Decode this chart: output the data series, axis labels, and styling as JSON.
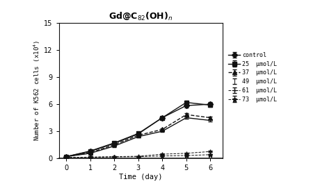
{
  "title": "Gd@C$_{82}$(OH)$_n$",
  "xlabel": "Time (day)",
  "ylabel": "Number of K562 cells (x10$^4$)",
  "xlim": [
    -0.3,
    6.5
  ],
  "ylim": [
    0,
    15
  ],
  "yticks": [
    0,
    3,
    6,
    9,
    12,
    15
  ],
  "xticks": [
    0,
    1,
    2,
    3,
    4,
    5,
    6
  ],
  "time": [
    0,
    1,
    2,
    3,
    4,
    5,
    6
  ],
  "series": [
    {
      "label": "control",
      "values": [
        0.18,
        0.75,
        1.65,
        2.7,
        4.5,
        5.85,
        6.0
      ],
      "errors": [
        0.05,
        0.08,
        0.1,
        0.12,
        0.12,
        0.2,
        0.22
      ],
      "linestyle": "-",
      "marker": "D",
      "markersize": 4,
      "linewidth": 1.0
    },
    {
      "label": "25  μmol/L",
      "values": [
        0.18,
        0.8,
        1.7,
        2.75,
        4.5,
        6.2,
        5.9
      ],
      "errors": [
        0.05,
        0.08,
        0.1,
        0.12,
        0.12,
        0.22,
        0.2
      ],
      "linestyle": "-",
      "marker": "s",
      "markersize": 4,
      "linewidth": 1.0
    },
    {
      "label": "37  μmol/L",
      "values": [
        0.18,
        0.6,
        1.5,
        2.55,
        3.2,
        4.85,
        4.5
      ],
      "errors": [
        0.05,
        0.07,
        0.1,
        0.1,
        0.1,
        0.16,
        0.16
      ],
      "linestyle": "--",
      "marker": "^",
      "markersize": 4,
      "linewidth": 1.0
    },
    {
      "label": "49  μmol/L",
      "values": [
        0.18,
        0.55,
        1.35,
        2.4,
        3.0,
        4.5,
        4.2
      ],
      "errors": [
        0.05,
        0.07,
        0.1,
        0.1,
        0.1,
        0.14,
        0.14
      ],
      "linestyle": "-",
      "marker": null,
      "markersize": 0,
      "linewidth": 1.0
    },
    {
      "label": "61  μmol/L",
      "values": [
        0.1,
        0.12,
        0.18,
        0.22,
        0.45,
        0.55,
        0.75
      ],
      "errors": [
        0.02,
        0.03,
        0.04,
        0.04,
        0.05,
        0.06,
        0.08
      ],
      "linestyle": "--",
      "marker": "+",
      "markersize": 5,
      "linewidth": 0.7
    },
    {
      "label": "73  μmol/L",
      "values": [
        0.1,
        0.12,
        0.15,
        0.18,
        0.25,
        0.3,
        0.4
      ],
      "errors": [
        0.02,
        0.03,
        0.03,
        0.03,
        0.04,
        0.05,
        0.06
      ],
      "linestyle": "--",
      "marker": "*",
      "markersize": 5,
      "linewidth": 0.7
    }
  ],
  "color": "#111111",
  "background_color": "#ffffff"
}
